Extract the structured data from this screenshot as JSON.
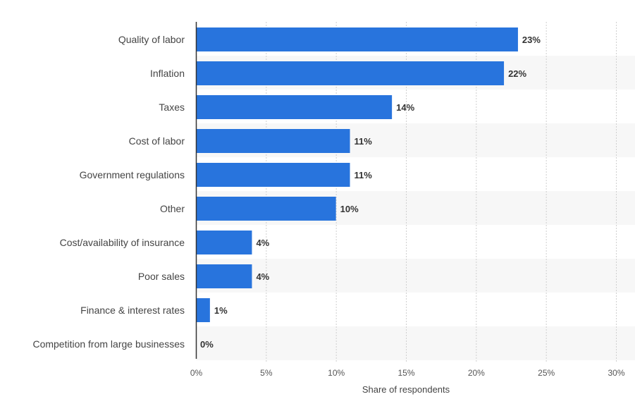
{
  "chart_data": {
    "type": "bar",
    "orientation": "horizontal",
    "categories": [
      "Quality of labor",
      "Inflation",
      "Taxes",
      "Cost of labor",
      "Government regulations",
      "Other",
      "Cost/availability of insurance",
      "Poor sales",
      "Finance & interest rates",
      "Competition from large businesses"
    ],
    "values": [
      23,
      22,
      14,
      11,
      11,
      10,
      4,
      4,
      1,
      0
    ],
    "value_labels": [
      "23%",
      "22%",
      "14%",
      "11%",
      "11%",
      "10%",
      "4%",
      "4%",
      "1%",
      "0%"
    ],
    "xlabel": "Share of respondents",
    "ylabel": "",
    "xlim": [
      0,
      30
    ],
    "ticks": [
      0,
      5,
      10,
      15,
      20,
      25,
      30
    ],
    "tick_labels": [
      "0%",
      "5%",
      "10%",
      "15%",
      "20%",
      "25%",
      "30%"
    ],
    "grid": true,
    "bar_color": "#2874dd",
    "band_color": "#f7f7f7"
  }
}
